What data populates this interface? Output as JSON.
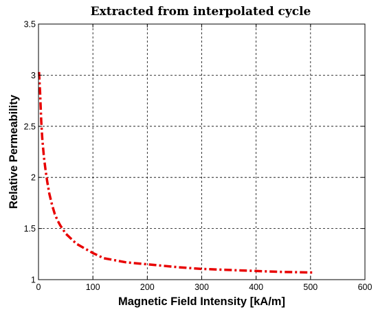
{
  "chart_data": {
    "type": "line",
    "title": "Extracted from interpolated cycle",
    "xlabel": "Magnetic Field Intensity [kA/m]",
    "ylabel": "Relative Permeability",
    "xlim": [
      0,
      600
    ],
    "ylim": [
      1,
      3.5
    ],
    "xticks": [
      0,
      100,
      200,
      300,
      400,
      500,
      600
    ],
    "yticks": [
      1,
      1.5,
      2,
      2.5,
      3,
      3.5
    ],
    "xtick_labels": [
      "0",
      "100",
      "200",
      "300",
      "400",
      "500",
      "600"
    ],
    "ytick_labels": [
      "1",
      "1.5",
      "2",
      "2.5",
      "3",
      "3.5"
    ],
    "grid": true,
    "series": [
      {
        "color": "#e80000",
        "style": "dash-dot",
        "x": [
          1,
          3,
          5,
          7,
          10,
          13,
          16,
          20,
          25,
          30,
          35,
          40,
          50,
          60,
          70,
          80,
          100,
          120,
          140,
          160,
          180,
          200,
          230,
          260,
          300,
          350,
          400,
          450,
          505
        ],
        "y": [
          3.03,
          2.82,
          2.55,
          2.38,
          2.2,
          2.07,
          1.96,
          1.84,
          1.73,
          1.64,
          1.58,
          1.53,
          1.45,
          1.4,
          1.35,
          1.32,
          1.26,
          1.21,
          1.19,
          1.17,
          1.16,
          1.15,
          1.135,
          1.12,
          1.105,
          1.095,
          1.085,
          1.075,
          1.07
        ]
      }
    ]
  }
}
